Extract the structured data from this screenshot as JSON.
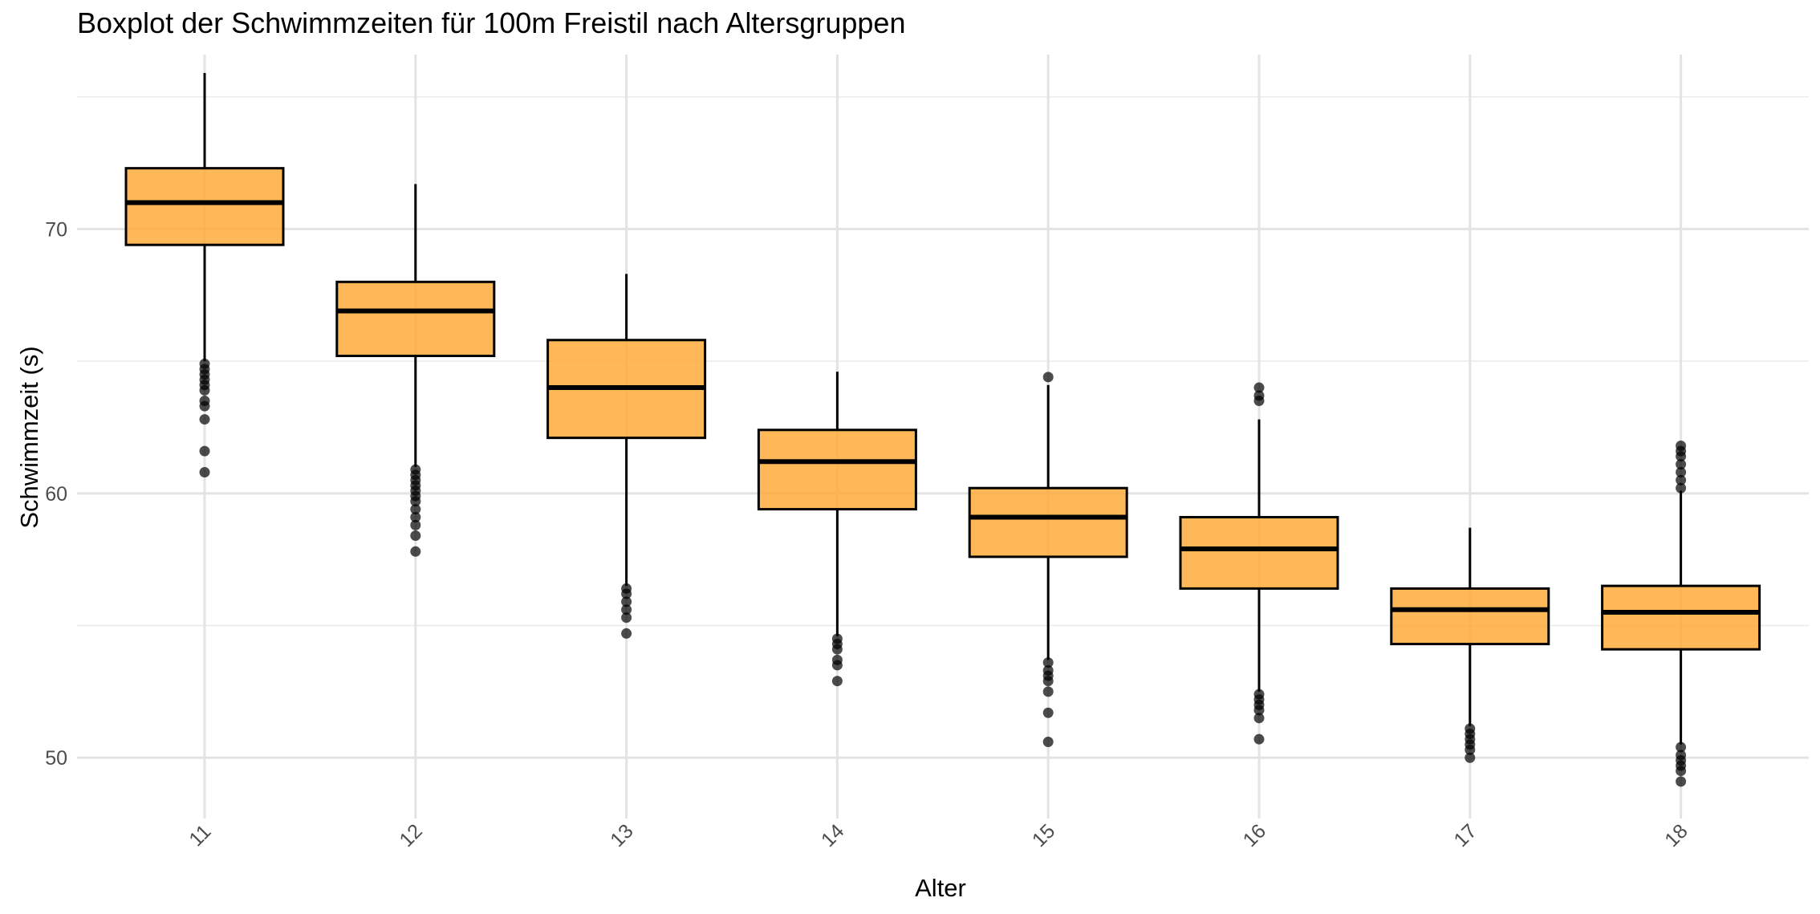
{
  "chart_data": {
    "type": "boxplot",
    "title": "Boxplot der Schwimmzeiten für 100m Freistil nach Altersgruppen",
    "xlabel": "Alter",
    "ylabel": "Schwimmzeit (s)",
    "ylim": [
      47.7,
      76.6
    ],
    "yticks": [
      50,
      60,
      70
    ],
    "grid": true,
    "box_fill": "#FFA62E",
    "box_stroke": "#000000",
    "categories": [
      "11",
      "12",
      "13",
      "14",
      "15",
      "16",
      "17",
      "18"
    ],
    "boxes": [
      {
        "label": "11",
        "whisker_low": 65.0,
        "q1": 69.4,
        "median": 71.0,
        "q3": 72.3,
        "whisker_high": 75.9,
        "outliers": [
          64.9,
          64.7,
          64.5,
          64.3,
          64.1,
          63.9,
          63.5,
          63.3,
          62.8,
          61.6,
          60.8
        ]
      },
      {
        "label": "12",
        "whisker_low": 61.0,
        "q1": 65.2,
        "median": 66.9,
        "q3": 68.0,
        "whisker_high": 71.7,
        "outliers": [
          60.9,
          60.7,
          60.5,
          60.3,
          60.1,
          59.9,
          59.7,
          59.4,
          59.1,
          58.8,
          58.4,
          57.8
        ]
      },
      {
        "label": "13",
        "whisker_low": 56.5,
        "q1": 62.1,
        "median": 64.0,
        "q3": 65.8,
        "whisker_high": 68.3,
        "outliers": [
          56.4,
          56.2,
          55.9,
          55.6,
          55.3,
          54.7
        ]
      },
      {
        "label": "14",
        "whisker_low": 54.6,
        "q1": 59.4,
        "median": 61.2,
        "q3": 62.4,
        "whisker_high": 64.6,
        "outliers": [
          54.5,
          54.3,
          54.1,
          53.7,
          53.5,
          52.9
        ]
      },
      {
        "label": "15",
        "whisker_low": 53.7,
        "q1": 57.6,
        "median": 59.1,
        "q3": 60.2,
        "whisker_high": 64.1,
        "outliers": [
          64.4,
          53.6,
          53.3,
          53.1,
          52.9,
          52.5,
          51.7,
          50.6
        ]
      },
      {
        "label": "16",
        "whisker_low": 52.5,
        "q1": 56.4,
        "median": 57.9,
        "q3": 59.1,
        "whisker_high": 62.8,
        "outliers": [
          64.0,
          63.7,
          63.5,
          52.4,
          52.2,
          52.0,
          51.8,
          51.5,
          50.7
        ]
      },
      {
        "label": "17",
        "whisker_low": 51.2,
        "q1": 54.3,
        "median": 55.6,
        "q3": 56.4,
        "whisker_high": 58.7,
        "outliers": [
          51.1,
          50.9,
          50.7,
          50.5,
          50.3,
          50.0
        ]
      },
      {
        "label": "18",
        "whisker_low": 50.5,
        "q1": 54.1,
        "median": 55.5,
        "q3": 56.5,
        "whisker_high": 60.1,
        "outliers": [
          61.8,
          61.6,
          61.4,
          61.1,
          60.8,
          60.5,
          60.2,
          50.4,
          50.1,
          49.9,
          49.7,
          49.5,
          49.1
        ]
      }
    ]
  }
}
